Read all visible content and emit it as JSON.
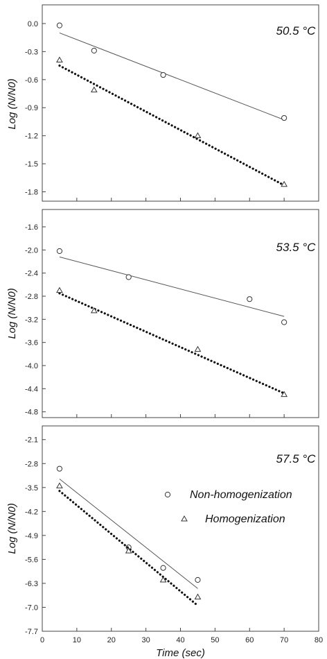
{
  "chart_data": [
    {
      "type": "scatter",
      "title": "",
      "annotation": "50.5 °C",
      "xlabel": "",
      "ylabel": "Log (N/N0)",
      "xlim": [
        0,
        80
      ],
      "ylim": [
        -1.9,
        0.2
      ],
      "xticks": [
        0,
        10,
        20,
        30,
        40,
        50,
        60,
        70,
        80
      ],
      "yticks": [
        0.0,
        -0.3,
        -0.6,
        -0.9,
        -1.2,
        -1.5,
        -1.8
      ],
      "ytick_labels": [
        "0.0",
        "-0.3",
        "-0.6",
        "-0.9",
        "-1.2",
        "-1.5",
        "-1.8"
      ],
      "series": [
        {
          "marker": "circle",
          "line": "solid",
          "x": [
            5,
            15,
            35,
            70
          ],
          "y": [
            -0.02,
            -0.29,
            -0.55,
            -1.01
          ],
          "fit": [
            [
              5,
              -0.1
            ],
            [
              70,
              -1.03
            ]
          ]
        },
        {
          "marker": "triangle",
          "line": "dotted",
          "x": [
            5,
            15,
            45,
            70
          ],
          "y": [
            -0.39,
            -0.71,
            -1.2,
            -1.72
          ],
          "fit": [
            [
              5,
              -0.45
            ],
            [
              70,
              -1.73
            ]
          ]
        }
      ]
    },
    {
      "type": "scatter",
      "title": "",
      "annotation": "53.5 °C",
      "xlabel": "",
      "ylabel": "Log (N/N0)",
      "xlim": [
        0,
        80
      ],
      "ylim": [
        -4.9,
        -1.3
      ],
      "xticks": [
        0,
        10,
        20,
        30,
        40,
        50,
        60,
        70,
        80
      ],
      "yticks": [
        -1.6,
        -2.0,
        -2.4,
        -2.8,
        -3.2,
        -3.6,
        -4.0,
        -4.4,
        -4.8
      ],
      "ytick_labels": [
        "-1.6",
        "-2.0",
        "-2.4",
        "-2.8",
        "-3.2",
        "-3.6",
        "-4.0",
        "-4.4",
        "-4.8"
      ],
      "series": [
        {
          "marker": "circle",
          "line": "solid",
          "x": [
            5,
            25,
            60,
            70
          ],
          "y": [
            -2.02,
            -2.47,
            -2.85,
            -3.25
          ],
          "fit": [
            [
              5,
              -2.12
            ],
            [
              70,
              -3.15
            ]
          ]
        },
        {
          "marker": "triangle",
          "line": "dotted",
          "x": [
            5,
            15,
            45,
            70
          ],
          "y": [
            -2.7,
            -3.05,
            -3.72,
            -4.5
          ],
          "fit": [
            [
              5,
              -2.75
            ],
            [
              70,
              -4.48
            ]
          ]
        }
      ]
    },
    {
      "type": "scatter",
      "title": "",
      "annotation": "57.5 °C",
      "xlabel": "Time (sec)",
      "ylabel": "Log (N/N0)",
      "xlim": [
        0,
        80
      ],
      "ylim": [
        -7.7,
        -1.7
      ],
      "xticks": [
        0,
        10,
        20,
        30,
        40,
        50,
        60,
        70,
        80
      ],
      "xtick_labels": [
        "0",
        "10",
        "20",
        "30",
        "40",
        "50",
        "60",
        "70",
        "80"
      ],
      "yticks": [
        -2.1,
        -2.8,
        -3.5,
        -4.2,
        -4.9,
        -5.6,
        -6.3,
        -7.0,
        -7.7
      ],
      "ytick_labels": [
        "-2.1",
        "-2.8",
        "-3.5",
        "-4.2",
        "-4.9",
        "-5.6",
        "-6.3",
        "-7.0",
        "-7.7"
      ],
      "legend": {
        "placement": "right",
        "entries": [
          {
            "label": "Non-homogenization",
            "marker": "circle"
          },
          {
            "label": "Homogenization",
            "marker": "triangle"
          }
        ]
      },
      "series": [
        {
          "name": "Non-homogenization",
          "marker": "circle",
          "line": "solid",
          "x": [
            5,
            25,
            35,
            45
          ],
          "y": [
            -2.95,
            -5.25,
            -5.85,
            -6.2
          ],
          "fit": [
            [
              5,
              -3.25
            ],
            [
              45,
              -6.45
            ]
          ]
        },
        {
          "name": "Homogenization",
          "marker": "triangle",
          "line": "dotted",
          "x": [
            5,
            25,
            35,
            45
          ],
          "y": [
            -3.45,
            -5.35,
            -6.2,
            -6.7
          ],
          "fit": [
            [
              5,
              -3.6
            ],
            [
              45,
              -6.95
            ]
          ]
        }
      ]
    }
  ]
}
